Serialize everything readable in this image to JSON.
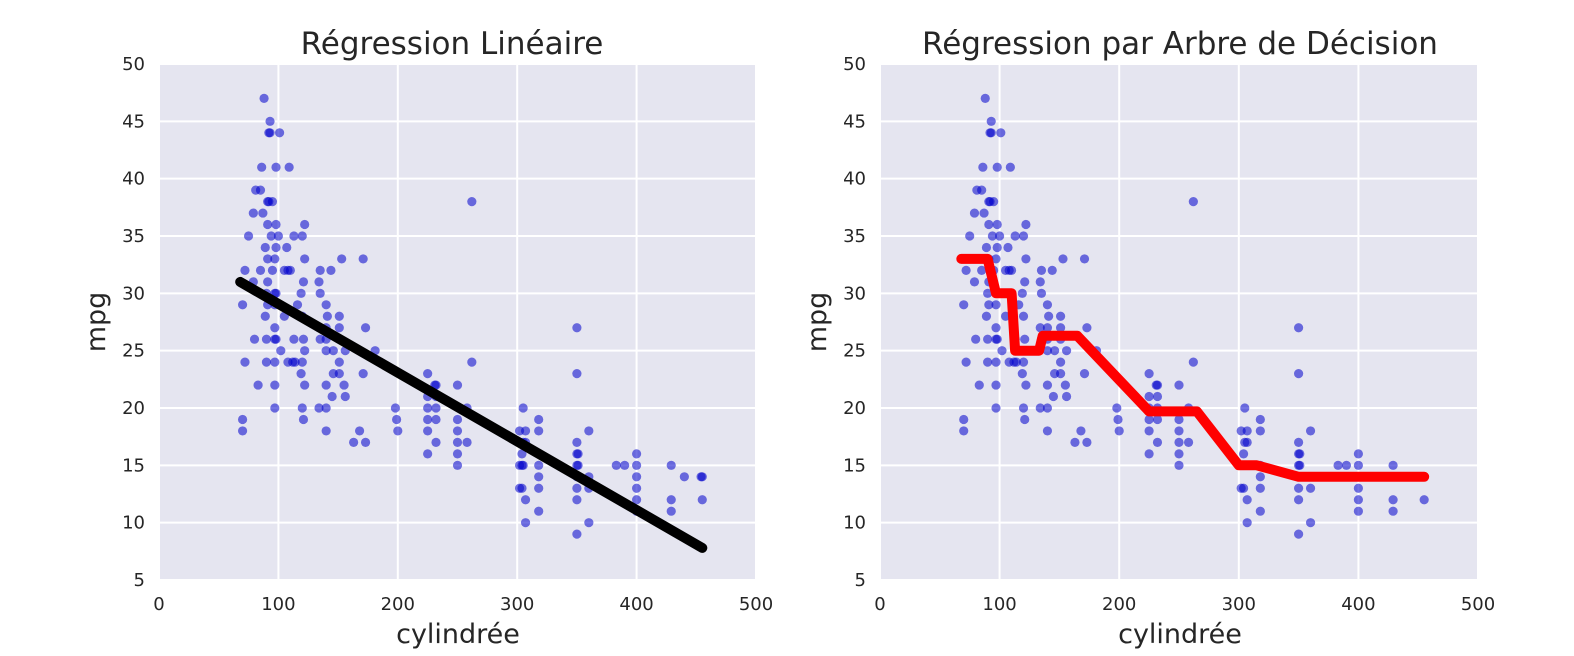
{
  "chart_data": [
    {
      "type": "scatter",
      "title": "Régression Linéaire",
      "xlabel": "cylindrée",
      "ylabel": "mpg",
      "xlim": [
        0,
        500
      ],
      "ylim": [
        5,
        50
      ],
      "xticks": [
        0,
        100,
        200,
        300,
        400,
        500
      ],
      "yticks": [
        5,
        10,
        15,
        20,
        25,
        30,
        35,
        40,
        45,
        50
      ],
      "grid": true,
      "colors": {
        "background": "#e5e5f0",
        "grid": "#ffffff",
        "points": "#0000cc",
        "fit": "#000000"
      },
      "series": [
        {
          "kind": "points",
          "points": [
            [
              70,
              29
            ],
            [
              70,
              18
            ],
            [
              70,
              19
            ],
            [
              72,
              32
            ],
            [
              72,
              24
            ],
            [
              75,
              35
            ],
            [
              79,
              37
            ],
            [
              79,
              31
            ],
            [
              80,
              26
            ],
            [
              81,
              39
            ],
            [
              83,
              22
            ],
            [
              85,
              39
            ],
            [
              85,
              32
            ],
            [
              86,
              41
            ],
            [
              87,
              37
            ],
            [
              88,
              47
            ],
            [
              89,
              34
            ],
            [
              89,
              28
            ],
            [
              90,
              30
            ],
            [
              90,
              24
            ],
            [
              90,
              26
            ],
            [
              91,
              33
            ],
            [
              91,
              31
            ],
            [
              91,
              38
            ],
            [
              91,
              36
            ],
            [
              91,
              29
            ],
            [
              92,
              38
            ],
            [
              92,
              44
            ],
            [
              93,
              45
            ],
            [
              93,
              44
            ],
            [
              94,
              35
            ],
            [
              95,
              38
            ],
            [
              95,
              32
            ],
            [
              97,
              27
            ],
            [
              97,
              24
            ],
            [
              97,
              22
            ],
            [
              97,
              20
            ],
            [
              97,
              33
            ],
            [
              97,
              30
            ],
            [
              97,
              26
            ],
            [
              97,
              29
            ],
            [
              98,
              26
            ],
            [
              98,
              34
            ],
            [
              98,
              41
            ],
            [
              98,
              30
            ],
            [
              98,
              36
            ],
            [
              100,
              35
            ],
            [
              101,
              44
            ],
            [
              102,
              25
            ],
            [
              105,
              32
            ],
            [
              105,
              28
            ],
            [
              107,
              34
            ],
            [
              108,
              24
            ],
            [
              108,
              32
            ],
            [
              109,
              41
            ],
            [
              110,
              32
            ],
            [
              112,
              24
            ],
            [
              113,
              26
            ],
            [
              113,
              35
            ],
            [
              114,
              24
            ],
            [
              116,
              29
            ],
            [
              119,
              23
            ],
            [
              119,
              30
            ],
            [
              120,
              20
            ],
            [
              120,
              24
            ],
            [
              120,
              28
            ],
            [
              120,
              35
            ],
            [
              121,
              19
            ],
            [
              121,
              26
            ],
            [
              121,
              31
            ],
            [
              122,
              22
            ],
            [
              122,
              25
            ],
            [
              122,
              36
            ],
            [
              122,
              33
            ],
            [
              134,
              27
            ],
            [
              134,
              20
            ],
            [
              134,
              31
            ],
            [
              135,
              30
            ],
            [
              135,
              32
            ],
            [
              135,
              26
            ],
            [
              140,
              18
            ],
            [
              140,
              20
            ],
            [
              140,
              22
            ],
            [
              140,
              25
            ],
            [
              140,
              26
            ],
            [
              140,
              27
            ],
            [
              140,
              29
            ],
            [
              141,
              28
            ],
            [
              144,
              32
            ],
            [
              145,
              21
            ],
            [
              146,
              25
            ],
            [
              146,
              23
            ],
            [
              151,
              26
            ],
            [
              151,
              28
            ],
            [
              151,
              24
            ],
            [
              151,
              23
            ],
            [
              151,
              27
            ],
            [
              153,
              33
            ],
            [
              155,
              22
            ],
            [
              156,
              21
            ],
            [
              156,
              25
            ],
            [
              163,
              17
            ],
            [
              168,
              18
            ],
            [
              171,
              23
            ],
            [
              171,
              33
            ],
            [
              173,
              17
            ],
            [
              173,
              27
            ],
            [
              181,
              25
            ],
            [
              198,
              20
            ],
            [
              199,
              19
            ],
            [
              200,
              18
            ],
            [
              225,
              20
            ],
            [
              225,
              21
            ],
            [
              225,
              18
            ],
            [
              225,
              16
            ],
            [
              225,
              23
            ],
            [
              225,
              19
            ],
            [
              231,
              22
            ],
            [
              232,
              19
            ],
            [
              232,
              21
            ],
            [
              232,
              22
            ],
            [
              232,
              17
            ],
            [
              232,
              20
            ],
            [
              250,
              15
            ],
            [
              250,
              16
            ],
            [
              250,
              17
            ],
            [
              250,
              18
            ],
            [
              250,
              19
            ],
            [
              250,
              22
            ],
            [
              258,
              17
            ],
            [
              258,
              20
            ],
            [
              262,
              38
            ],
            [
              262,
              24
            ],
            [
              302,
              15
            ],
            [
              302,
              13
            ],
            [
              302,
              18
            ],
            [
              304,
              15
            ],
            [
              304,
              13
            ],
            [
              304,
              16
            ],
            [
              305,
              15
            ],
            [
              305,
              17
            ],
            [
              305,
              20
            ],
            [
              307,
              17
            ],
            [
              307,
              12
            ],
            [
              307,
              10
            ],
            [
              307,
              18
            ],
            [
              318,
              13
            ],
            [
              318,
              14
            ],
            [
              318,
              15
            ],
            [
              318,
              18
            ],
            [
              318,
              19
            ],
            [
              318,
              11
            ],
            [
              350,
              9
            ],
            [
              350,
              13
            ],
            [
              350,
              14
            ],
            [
              350,
              15
            ],
            [
              350,
              16
            ],
            [
              350,
              17
            ],
            [
              350,
              12
            ],
            [
              350,
              23
            ],
            [
              350,
              27
            ],
            [
              351,
              14
            ],
            [
              351,
              15
            ],
            [
              351,
              16
            ],
            [
              360,
              14
            ],
            [
              360,
              18
            ],
            [
              360,
              13
            ],
            [
              360,
              10
            ],
            [
              383,
              15
            ],
            [
              390,
              15
            ],
            [
              400,
              11
            ],
            [
              400,
              13
            ],
            [
              400,
              14
            ],
            [
              400,
              15
            ],
            [
              400,
              16
            ],
            [
              400,
              12
            ],
            [
              429,
              15
            ],
            [
              429,
              12
            ],
            [
              429,
              11
            ],
            [
              440,
              14
            ],
            [
              454,
              14
            ],
            [
              455,
              12
            ],
            [
              455,
              14
            ]
          ]
        },
        {
          "kind": "line",
          "name": "",
          "points": [
            [
              68,
              31.0
            ],
            [
              455,
              7.8
            ]
          ]
        }
      ]
    },
    {
      "type": "scatter",
      "title": "Régression par Arbre de Décision",
      "xlabel": "cylindrée",
      "ylabel": "mpg",
      "xlim": [
        0,
        500
      ],
      "ylim": [
        5,
        50
      ],
      "xticks": [
        0,
        100,
        200,
        300,
        400,
        500
      ],
      "yticks": [
        5,
        10,
        15,
        20,
        25,
        30,
        35,
        40,
        45,
        50
      ],
      "grid": true,
      "colors": {
        "background": "#e5e5f0",
        "grid": "#ffffff",
        "points": "#0000cc",
        "fit": "#ff0000"
      },
      "series": [
        {
          "kind": "points",
          "same_as_chart": 0
        },
        {
          "kind": "line",
          "name": "",
          "points": [
            [
              68,
              33
            ],
            [
              90,
              33
            ],
            [
              97,
              30
            ],
            [
              110,
              30
            ],
            [
              113,
              25
            ],
            [
              133,
              25
            ],
            [
              136,
              26.3
            ],
            [
              165,
              26.3
            ],
            [
              225,
              19.7
            ],
            [
              265,
              19.7
            ],
            [
              300,
              15
            ],
            [
              315,
              15
            ],
            [
              350,
              14
            ],
            [
              455,
              14
            ]
          ]
        }
      ]
    }
  ]
}
